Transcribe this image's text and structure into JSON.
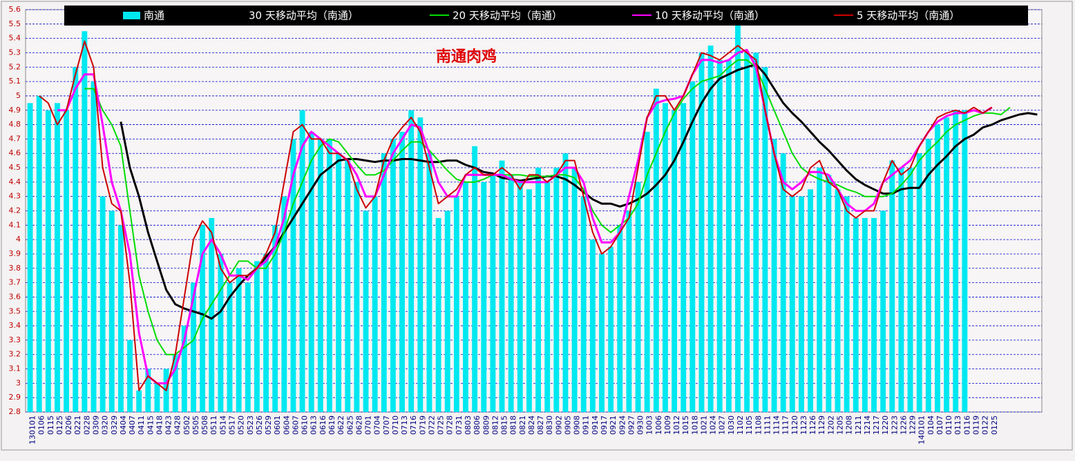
{
  "chart_data": {
    "type": "bar",
    "title": "南通肉鸡",
    "categories": [
      "130101",
      "0106",
      "0115",
      "0125",
      "0206",
      "0221",
      "0228",
      "0309",
      "0320",
      "0329",
      "0404",
      "0407",
      "0411",
      "0415",
      "0418",
      "0423",
      "0428",
      "0502",
      "0505",
      "0508",
      "0511",
      "0514",
      "0517",
      "0520",
      "0523",
      "0526",
      "0529",
      "0601",
      "0604",
      "0607",
      "0610",
      "0613",
      "0616",
      "0619",
      "0622",
      "0625",
      "0628",
      "0701",
      "0704",
      "0707",
      "0710",
      "0713",
      "0716",
      "0719",
      "0722",
      "0725",
      "0728",
      "0731",
      "0803",
      "0806",
      "0809",
      "0812",
      "0815",
      "0818",
      "0821",
      "0824",
      "0827",
      "0830",
      "0902",
      "0905",
      "0908",
      "0911",
      "0914",
      "0917",
      "0921",
      "0924",
      "0927",
      "0930",
      "1003",
      "1006",
      "1009",
      "1012",
      "1015",
      "1018",
      "1021",
      "1024",
      "1027",
      "1030",
      "1102",
      "1105",
      "1108",
      "1111",
      "1114",
      "1117",
      "1120",
      "1123",
      "1126",
      "1129",
      "1202",
      "1205",
      "1208",
      "1211",
      "1214",
      "1217",
      "1220",
      "1223",
      "1226",
      "1229",
      "140101",
      "0104",
      "0107",
      "0110",
      "0113",
      "0116",
      "0119",
      "0122",
      "0125",
      null,
      null,
      null,
      null,
      null
    ],
    "series": [
      {
        "name": "南通",
        "kind": "bar",
        "color": "#00e8f0",
        "values": [
          4.95,
          5.0,
          4.9,
          4.95,
          4.9,
          5.2,
          5.45,
          5.1,
          4.3,
          4.2,
          4.1,
          3.3,
          2.95,
          3.1,
          3.0,
          3.1,
          3.2,
          3.4,
          3.7,
          4.1,
          4.15,
          3.9,
          3.7,
          3.8,
          3.7,
          3.85,
          3.9,
          4.1,
          4.3,
          4.7,
          4.9,
          4.75,
          4.7,
          4.7,
          4.6,
          4.55,
          4.4,
          4.2,
          4.3,
          4.6,
          4.7,
          4.75,
          4.9,
          4.85,
          4.6,
          4.15,
          4.2,
          4.3,
          4.4,
          4.65,
          4.4,
          4.45,
          4.55,
          4.45,
          4.4,
          4.35,
          4.5,
          4.4,
          4.5,
          4.6,
          4.5,
          4.3,
          4.0,
          3.9,
          3.95,
          4.1,
          4.2,
          4.4,
          4.75,
          5.05,
          4.95,
          4.9,
          4.95,
          5.1,
          5.3,
          5.35,
          5.25,
          5.25,
          5.5,
          5.3,
          5.3,
          5.2,
          4.7,
          4.6,
          4.3,
          4.3,
          4.35,
          4.5,
          4.45,
          4.35,
          4.3,
          4.15,
          4.15,
          4.15,
          4.2,
          4.55,
          4.5,
          4.5,
          4.6,
          4.7,
          4.8,
          4.85,
          4.9,
          4.9,
          null,
          null,
          null,
          null,
          null,
          null,
          null,
          null
        ]
      },
      {
        "name": "30 天移动平均（南通）",
        "kind": "line",
        "color": "#000000",
        "width": 3,
        "values": [
          null,
          null,
          null,
          null,
          null,
          null,
          null,
          null,
          null,
          null,
          4.82,
          4.5,
          4.3,
          4.05,
          3.85,
          3.65,
          3.55,
          3.52,
          3.5,
          3.48,
          3.45,
          3.5,
          3.6,
          3.68,
          3.75,
          3.8,
          3.88,
          3.95,
          4.05,
          4.15,
          4.25,
          4.35,
          4.45,
          4.5,
          4.55,
          4.56,
          4.56,
          4.55,
          4.54,
          4.55,
          4.55,
          4.56,
          4.56,
          4.55,
          4.54,
          4.54,
          4.55,
          4.55,
          4.52,
          4.5,
          4.47,
          4.46,
          4.43,
          4.42,
          4.41,
          4.42,
          4.43,
          4.44,
          4.44,
          4.42,
          4.38,
          4.33,
          4.28,
          4.25,
          4.25,
          4.23,
          4.25,
          4.28,
          4.32,
          4.38,
          4.45,
          4.55,
          4.68,
          4.82,
          4.95,
          5.05,
          5.12,
          5.15,
          5.18,
          5.2,
          5.22,
          5.15,
          5.05,
          4.95,
          4.88,
          4.82,
          4.75,
          4.68,
          4.62,
          4.55,
          4.48,
          4.42,
          4.38,
          4.35,
          4.32,
          4.32,
          4.35,
          4.36,
          4.36,
          4.45,
          4.52,
          4.58,
          4.65,
          4.7,
          4.73,
          4.78,
          4.8,
          4.83,
          4.85,
          4.87,
          4.88,
          4.87
        ]
      },
      {
        "name": "20 天移动平均（南通）",
        "kind": "line",
        "color": "#00dd00",
        "width": 2,
        "values": [
          null,
          null,
          null,
          null,
          null,
          null,
          5.05,
          5.05,
          4.9,
          4.8,
          4.65,
          4.2,
          3.75,
          3.5,
          3.3,
          3.2,
          3.2,
          3.25,
          3.3,
          3.45,
          3.55,
          3.65,
          3.75,
          3.85,
          3.85,
          3.8,
          3.8,
          3.9,
          4.05,
          4.25,
          4.4,
          4.55,
          4.65,
          4.7,
          4.68,
          4.6,
          4.52,
          4.45,
          4.45,
          4.48,
          4.55,
          4.62,
          4.68,
          4.68,
          4.62,
          4.55,
          4.48,
          4.42,
          4.4,
          4.4,
          4.42,
          4.45,
          4.45,
          4.45,
          4.45,
          4.44,
          4.44,
          4.44,
          4.45,
          4.45,
          4.43,
          4.35,
          4.2,
          4.1,
          4.05,
          4.1,
          4.15,
          4.25,
          4.45,
          4.6,
          4.75,
          4.88,
          4.98,
          5.05,
          5.1,
          5.12,
          5.14,
          5.2,
          5.25,
          5.25,
          5.2,
          5.05,
          4.9,
          4.75,
          4.6,
          4.5,
          4.45,
          4.42,
          4.4,
          4.38,
          4.35,
          4.33,
          4.3,
          4.3,
          4.3,
          4.32,
          4.38,
          4.45,
          4.55,
          4.62,
          4.68,
          4.75,
          4.8,
          4.83,
          4.86,
          4.88,
          4.88,
          4.87,
          4.92,
          null,
          null,
          null
        ]
      },
      {
        "name": "10 天移动平均（南通）",
        "kind": "line",
        "color": "#ff00ff",
        "width": 3,
        "values": [
          null,
          null,
          null,
          4.9,
          4.9,
          5.05,
          5.15,
          5.15,
          4.8,
          4.4,
          4.2,
          3.9,
          3.35,
          3.05,
          3.0,
          3.0,
          3.1,
          3.3,
          3.6,
          3.9,
          4.0,
          3.9,
          3.75,
          3.75,
          3.72,
          3.8,
          3.85,
          3.95,
          4.15,
          4.45,
          4.65,
          4.75,
          4.7,
          4.65,
          4.6,
          4.55,
          4.45,
          4.3,
          4.3,
          4.45,
          4.6,
          4.7,
          4.8,
          4.78,
          4.6,
          4.4,
          4.3,
          4.3,
          4.45,
          4.45,
          4.45,
          4.45,
          4.45,
          4.42,
          4.4,
          4.4,
          4.4,
          4.4,
          4.45,
          4.5,
          4.5,
          4.4,
          4.15,
          3.98,
          3.98,
          4.05,
          4.3,
          4.55,
          4.85,
          4.95,
          4.97,
          4.98,
          5.0,
          5.15,
          5.25,
          5.25,
          5.23,
          5.25,
          5.3,
          5.32,
          5.2,
          4.9,
          4.6,
          4.4,
          4.35,
          4.4,
          4.47,
          4.47,
          4.45,
          4.35,
          4.25,
          4.2,
          4.2,
          4.25,
          4.4,
          4.45,
          4.5,
          4.55,
          4.65,
          4.75,
          4.82,
          4.86,
          4.88,
          4.88,
          4.9,
          4.88,
          4.92,
          null,
          null,
          null,
          null,
          null
        ]
      },
      {
        "name": "5 天移动平均（南通）",
        "kind": "line",
        "color": "#cc0000",
        "width": 2,
        "values": [
          null,
          5.0,
          4.95,
          4.8,
          4.9,
          5.15,
          5.38,
          5.2,
          4.5,
          4.25,
          4.2,
          3.7,
          2.95,
          3.05,
          3.0,
          2.95,
          3.2,
          3.6,
          4.0,
          4.13,
          4.05,
          3.8,
          3.7,
          3.75,
          3.75,
          3.8,
          3.9,
          4.05,
          4.4,
          4.75,
          4.8,
          4.7,
          4.7,
          4.6,
          4.6,
          4.55,
          4.35,
          4.22,
          4.3,
          4.55,
          4.7,
          4.78,
          4.85,
          4.75,
          4.5,
          4.25,
          4.3,
          4.35,
          4.45,
          4.5,
          4.45,
          4.45,
          4.5,
          4.45,
          4.35,
          4.45,
          4.45,
          4.4,
          4.45,
          4.55,
          4.55,
          4.3,
          4.05,
          3.9,
          3.95,
          4.05,
          4.15,
          4.5,
          4.85,
          5.0,
          5.0,
          4.9,
          5.0,
          5.15,
          5.3,
          5.28,
          5.25,
          5.3,
          5.35,
          5.3,
          5.25,
          4.9,
          4.6,
          4.35,
          4.3,
          4.35,
          4.5,
          4.55,
          4.4,
          4.35,
          4.2,
          4.15,
          4.2,
          4.2,
          4.4,
          4.55,
          4.45,
          4.5,
          4.65,
          4.75,
          4.85,
          4.88,
          4.9,
          4.88,
          4.92,
          4.88,
          4.92,
          null,
          null,
          null,
          null,
          null
        ]
      }
    ],
    "ylim": [
      2.8,
      5.6
    ],
    "yticks": [
      2.8,
      2.9,
      3,
      3.1,
      3.2,
      3.3,
      3.4,
      3.5,
      3.6,
      3.7,
      3.8,
      3.9,
      4,
      4.1,
      4.2,
      4.3,
      4.4,
      4.5,
      4.6,
      4.7,
      4.8,
      4.9,
      5,
      5.1,
      5.2,
      5.3,
      5.4,
      5.5,
      5.6
    ],
    "grid": true,
    "legend": "top"
  }
}
